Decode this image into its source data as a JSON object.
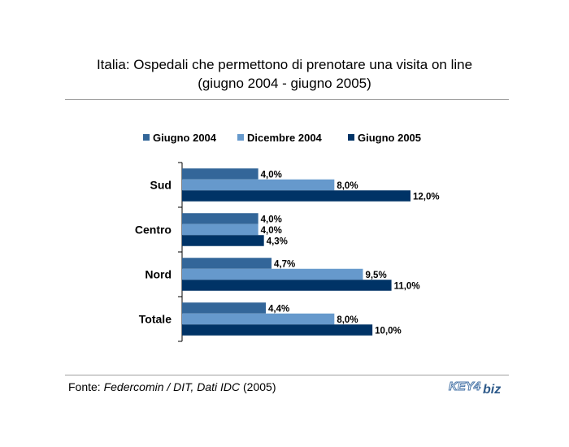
{
  "title_line1": "Italia: Ospedali che permettono di prenotare una visita on line",
  "title_line2": "(giugno 2004 - giugno 2005)",
  "footer": {
    "prefix": "Fonte: ",
    "source": "Federcomin / DIT, Dati IDC",
    "year": " (2005)"
  },
  "logo": {
    "part1": "KEY4",
    "part2": "biz"
  },
  "colors": {
    "s1": "#336699",
    "s2": "#6699cc",
    "s3": "#003366"
  },
  "chart_data": {
    "type": "bar",
    "orientation": "horizontal",
    "categories": [
      "Sud",
      "Centro",
      "Nord",
      "Totale"
    ],
    "series": [
      {
        "name": "Giugno 2004",
        "values": [
          4.0,
          4.0,
          4.7,
          4.4
        ],
        "labels": [
          "4,0%",
          "4,0%",
          "4,7%",
          "4,4%"
        ]
      },
      {
        "name": "Dicembre 2004",
        "values": [
          8.0,
          4.0,
          9.5,
          8.0
        ],
        "labels": [
          "8,0%",
          "4,0%",
          "9,5%",
          "8,0%"
        ]
      },
      {
        "name": "Giugno 2005",
        "values": [
          12.0,
          4.3,
          11.0,
          10.0
        ],
        "labels": [
          "12,0%",
          "4,3%",
          "11,0%",
          "10,0%"
        ]
      }
    ],
    "xlim": [
      0,
      12.0
    ],
    "legend": "top",
    "grid": false
  }
}
